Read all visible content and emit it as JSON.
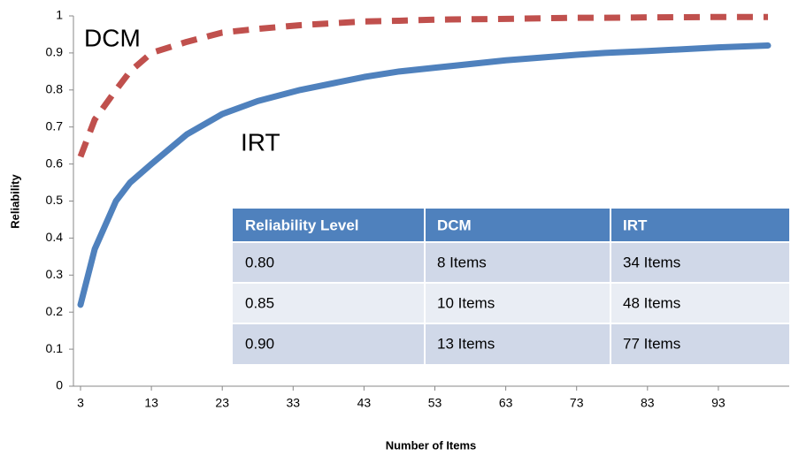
{
  "chart_data": {
    "type": "line",
    "x": [
      3,
      5,
      8,
      10,
      13,
      18,
      23,
      28,
      34,
      43,
      48,
      53,
      63,
      73,
      77,
      83,
      93,
      100
    ],
    "series": [
      {
        "name": "DCM",
        "color": "#c0504d",
        "dashed": true,
        "values": [
          0.62,
          0.72,
          0.8,
          0.85,
          0.9,
          0.93,
          0.955,
          0.965,
          0.975,
          0.985,
          0.987,
          0.99,
          0.992,
          0.995,
          0.995,
          0.996,
          0.997,
          0.997
        ]
      },
      {
        "name": "IRT",
        "color": "#4f81bd",
        "dashed": false,
        "values": [
          0.22,
          0.37,
          0.5,
          0.55,
          0.6,
          0.68,
          0.735,
          0.77,
          0.8,
          0.835,
          0.85,
          0.86,
          0.88,
          0.895,
          0.9,
          0.905,
          0.915,
          0.92
        ]
      }
    ],
    "xlabel": "Number of Items",
    "ylabel": "Reliability",
    "xlim": [
      2,
      103
    ],
    "xticks": [
      3,
      13,
      23,
      33,
      43,
      53,
      63,
      73,
      83,
      93
    ],
    "ylim": [
      0,
      1
    ],
    "yticks": [
      0,
      0.1,
      0.2,
      0.3,
      0.4,
      0.5,
      0.6,
      0.7,
      0.8,
      0.9,
      1
    ],
    "grid": false
  },
  "table": {
    "header": [
      "Reliability Level",
      "DCM",
      "IRT"
    ],
    "rows": [
      [
        "0.80",
        "8 Items",
        "34 Items"
      ],
      [
        "0.85",
        "10 Items",
        "48 Items"
      ],
      [
        "0.90",
        "13 Items",
        "77 Items"
      ]
    ]
  }
}
